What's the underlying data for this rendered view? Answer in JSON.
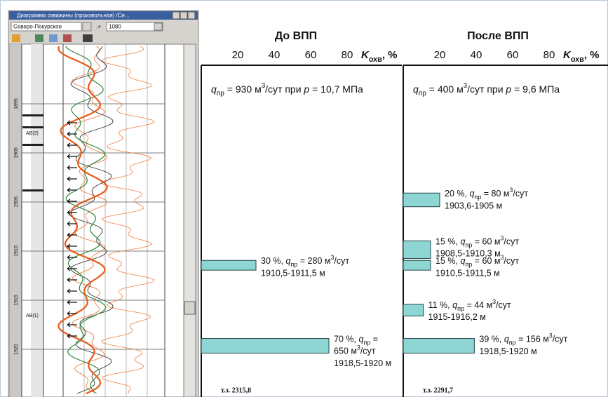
{
  "log_window": {
    "title": "Диаграмма скважины (произвольная) /Се...",
    "field": "Северо-Покурское",
    "depth": "1080",
    "depth_labels": [
      "1895",
      "1900",
      "1905",
      "1910",
      "1915",
      "1920"
    ],
    "layer_labels": [
      "АВ(3)",
      "АВ(1)"
    ]
  },
  "chart_data": [
    {
      "type": "bar",
      "orientation": "horizontal",
      "title": "До ВПП",
      "xlabel": [
        {
          "text": "K",
          "style": "bold-italic"
        },
        {
          "text": "охв",
          "style": "bold-sub"
        },
        {
          "text": ", %",
          "style": "bold"
        }
      ],
      "xlim": [
        0,
        110
      ],
      "xticks": [
        20,
        40,
        60,
        80
      ],
      "ylim": [
        1890.5,
        1924.5
      ],
      "y_inverted": true,
      "headline": [
        {
          "text": "q",
          "style": "italic"
        },
        {
          "text": "пр",
          "style": "sub"
        },
        {
          "text": " = 930 м"
        },
        {
          "text": "3",
          "style": "sup"
        },
        {
          "text": "/сут при "
        },
        {
          "text": "p",
          "style": "italic"
        },
        {
          "text": " = 10,7 МПа"
        }
      ],
      "values": [
        30,
        70
      ],
      "value_labels": [
        "30 %",
        "70 %"
      ],
      "intervals": [
        [
          1910.5,
          1911.5
        ],
        [
          1918.5,
          1920
        ]
      ],
      "interval_labels": [
        "1910,5-1911,5 м",
        "1918,5-1920 м"
      ],
      "flow_labels": [
        [
          [
            {
              "text": ", "
            },
            {
              "text": "q",
              "style": "italic"
            },
            {
              "text": "пр",
              "style": "sub"
            },
            {
              "text": " = 280 м"
            },
            {
              "text": "3",
              "style": "sup"
            },
            {
              "text": "/сут"
            }
          ]
        ],
        [
          [
            {
              "text": ", "
            },
            {
              "text": "q",
              "style": "italic"
            },
            {
              "text": "пр",
              "style": "sub"
            },
            {
              "text": " ="
            }
          ],
          [
            {
              "text": "650 м"
            },
            {
              "text": "3",
              "style": "sup"
            },
            {
              "text": "/сут"
            }
          ]
        ]
      ],
      "color": "#8ed6d4",
      "footer": "т.з. 2315,8"
    },
    {
      "type": "bar",
      "orientation": "horizontal",
      "title": "После ВПП",
      "xlabel": [
        {
          "text": "K",
          "style": "bold-italic"
        },
        {
          "text": "охв",
          "style": "bold-sub"
        },
        {
          "text": ", %",
          "style": "bold"
        }
      ],
      "xlim": [
        0,
        110
      ],
      "xticks": [
        20,
        40,
        60,
        80
      ],
      "ylim": [
        1890.5,
        1924.5
      ],
      "y_inverted": true,
      "headline": [
        {
          "text": "q",
          "style": "italic"
        },
        {
          "text": "пр",
          "style": "sub"
        },
        {
          "text": " = 400 м"
        },
        {
          "text": "3",
          "style": "sup"
        },
        {
          "text": "/сут при "
        },
        {
          "text": "p",
          "style": "italic"
        },
        {
          "text": " = 9,6 МПа"
        }
      ],
      "values": [
        20,
        15,
        15,
        11,
        39
      ],
      "value_labels": [
        "20 %",
        "15 %",
        "15 %",
        "11 %",
        "39 %"
      ],
      "intervals": [
        [
          1903.6,
          1905
        ],
        [
          1908.5,
          1910.3
        ],
        [
          1910.5,
          1911.5
        ],
        [
          1915,
          1916.2
        ],
        [
          1918.5,
          1920
        ]
      ],
      "interval_labels": [
        "1903,6-1905 м",
        "1908,5-1910,3 м",
        "1910,5-1911,5 м",
        "1915-1916,2 м",
        "1918,5-1920 м"
      ],
      "flow_labels": [
        [
          [
            {
              "text": ", "
            },
            {
              "text": "q",
              "style": "italic"
            },
            {
              "text": "пр",
              "style": "sub"
            },
            {
              "text": " = 80 м"
            },
            {
              "text": "3",
              "style": "sup"
            },
            {
              "text": "/сут"
            }
          ]
        ],
        [
          [
            {
              "text": ", "
            },
            {
              "text": "q",
              "style": "italic"
            },
            {
              "text": "пр",
              "style": "sub"
            },
            {
              "text": " = 60 м"
            },
            {
              "text": "3",
              "style": "sup"
            },
            {
              "text": "/сут"
            }
          ]
        ],
        [
          [
            {
              "text": ", "
            },
            {
              "text": "q",
              "style": "italic"
            },
            {
              "text": "пр",
              "style": "sub"
            },
            {
              "text": " = 60 м"
            },
            {
              "text": "3",
              "style": "sup"
            },
            {
              "text": "/сут"
            }
          ]
        ],
        [
          [
            {
              "text": ", "
            },
            {
              "text": "q",
              "style": "italic"
            },
            {
              "text": "пр",
              "style": "sub"
            },
            {
              "text": " = 44 м"
            },
            {
              "text": "3",
              "style": "sup"
            },
            {
              "text": "/сут"
            }
          ]
        ],
        [
          [
            {
              "text": ", "
            },
            {
              "text": "q",
              "style": "italic"
            },
            {
              "text": "пр",
              "style": "sub"
            },
            {
              "text": " = 156 м"
            },
            {
              "text": "3",
              "style": "sup"
            },
            {
              "text": "/сут"
            }
          ]
        ]
      ],
      "color": "#8ed6d4",
      "footer": "т.з. 2291,7"
    }
  ]
}
